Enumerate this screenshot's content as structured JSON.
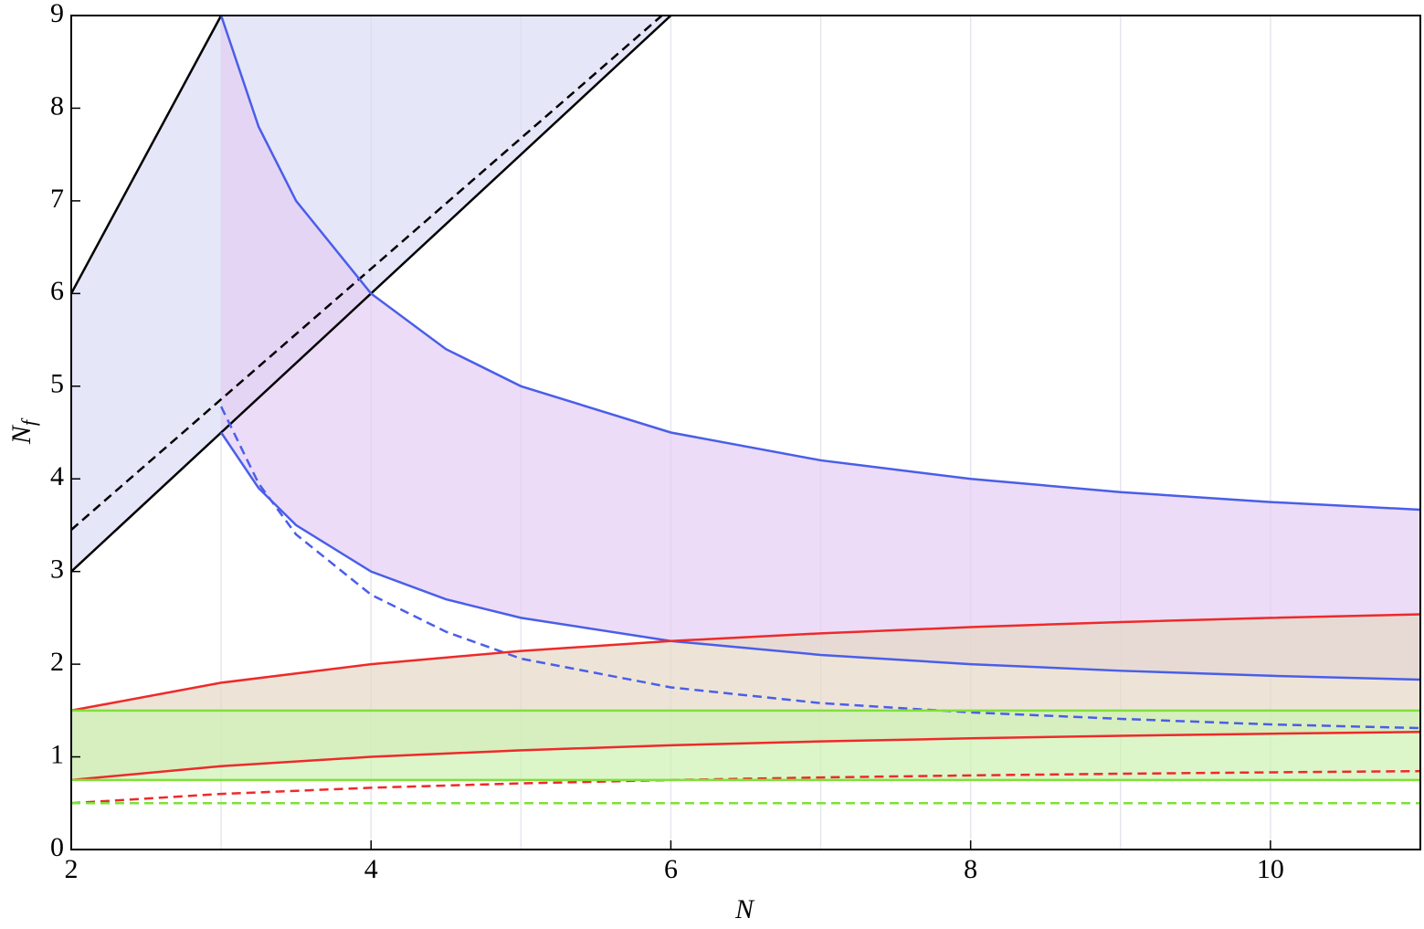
{
  "chart_data": {
    "type": "line",
    "xlabel": "N",
    "ylabel": "N",
    "ylabel_subscript": "f",
    "xlim": [
      2,
      11
    ],
    "ylim": [
      0,
      9
    ],
    "xticks": [
      2,
      4,
      6,
      8,
      10
    ],
    "yticks": [
      0,
      1,
      2,
      3,
      4,
      5,
      6,
      7,
      8,
      9
    ],
    "x_gridlines": [
      3,
      4,
      5,
      6,
      7,
      8,
      9,
      10
    ],
    "bands": [
      {
        "color": "#dcdcf6",
        "x": [
          2,
          3,
          6
        ],
        "upper": [
          6,
          9,
          9
        ],
        "lower": [
          3,
          4.5,
          9
        ]
      },
      {
        "color": "#e4cdf3",
        "x": [
          3,
          3.25,
          3.5,
          4,
          4.5,
          5,
          6,
          7,
          8,
          9,
          10,
          11
        ],
        "upper": [
          9,
          7.8,
          7,
          6,
          5.4,
          5,
          4.5,
          4.2,
          4,
          3.857,
          3.75,
          3.667
        ],
        "lower": [
          4.5,
          3.9,
          3.5,
          3,
          2.7,
          2.5,
          2.25,
          2.1,
          2,
          1.929,
          1.875,
          1.833
        ]
      },
      {
        "color": "#e6d9c6",
        "x": [
          2,
          3,
          4,
          5,
          6,
          7,
          8,
          9,
          10,
          11
        ],
        "upper": [
          1.5,
          1.8,
          2,
          2.143,
          2.25,
          2.333,
          2.4,
          2.455,
          2.5,
          2.538
        ],
        "lower": [
          0.75,
          0.9,
          1,
          1.071,
          1.125,
          1.167,
          1.2,
          1.227,
          1.25,
          1.269
        ]
      },
      {
        "color": "#cdf2b4",
        "x": [
          2,
          11
        ],
        "upper": [
          1.5,
          1.5
        ],
        "lower": [
          0.75,
          0.75
        ]
      }
    ],
    "series": [
      {
        "color": "#000000",
        "dashed": false,
        "x": [
          2,
          3
        ],
        "values": [
          6,
          9
        ]
      },
      {
        "color": "#000000",
        "dashed": false,
        "x": [
          2,
          6
        ],
        "values": [
          3,
          9
        ]
      },
      {
        "color": "#000000",
        "dashed": true,
        "x": [
          2,
          5.94
        ],
        "values": [
          3.45,
          9
        ]
      },
      {
        "color": "#4a5ee8",
        "dashed": false,
        "x": [
          3,
          3.25,
          3.5,
          4,
          4.5,
          5,
          6,
          7,
          8,
          9,
          10,
          11
        ],
        "values": [
          9,
          7.8,
          7,
          6,
          5.4,
          5,
          4.5,
          4.2,
          4,
          3.857,
          3.75,
          3.667
        ]
      },
      {
        "color": "#4a5ee8",
        "dashed": false,
        "x": [
          3,
          3.25,
          3.5,
          4,
          4.5,
          5,
          6,
          7,
          8,
          9,
          10,
          11
        ],
        "values": [
          4.5,
          3.9,
          3.5,
          3,
          2.7,
          2.5,
          2.25,
          2.1,
          2,
          1.929,
          1.875,
          1.833
        ]
      },
      {
        "color": "#4a5ee8",
        "dashed": true,
        "x": [
          3,
          3.25,
          3.5,
          4,
          4.5,
          5,
          6,
          7,
          8,
          9,
          10,
          11
        ],
        "values": [
          4.78,
          3.95,
          3.4,
          2.75,
          2.35,
          2.06,
          1.75,
          1.58,
          1.48,
          1.41,
          1.35,
          1.31
        ]
      },
      {
        "color": "#ee2a2a",
        "dashed": false,
        "x": [
          2,
          3,
          4,
          5,
          6,
          7,
          8,
          9,
          10,
          11
        ],
        "values": [
          1.5,
          1.8,
          2,
          2.143,
          2.25,
          2.333,
          2.4,
          2.455,
          2.5,
          2.538
        ]
      },
      {
        "color": "#ee2a2a",
        "dashed": false,
        "x": [
          2,
          3,
          4,
          5,
          6,
          7,
          8,
          9,
          10,
          11
        ],
        "values": [
          0.75,
          0.9,
          1,
          1.071,
          1.125,
          1.167,
          1.2,
          1.227,
          1.25,
          1.269
        ]
      },
      {
        "color": "#ee2a2a",
        "dashed": true,
        "x": [
          2,
          3,
          4,
          5,
          6,
          7,
          8,
          9,
          10,
          11
        ],
        "values": [
          0.5,
          0.6,
          0.667,
          0.714,
          0.75,
          0.778,
          0.8,
          0.818,
          0.833,
          0.846
        ]
      },
      {
        "color": "#7fe03a",
        "dashed": false,
        "x": [
          2,
          11
        ],
        "values": [
          1.5,
          1.5
        ]
      },
      {
        "color": "#7fe03a",
        "dashed": false,
        "x": [
          2,
          11
        ],
        "values": [
          0.75,
          0.75
        ]
      },
      {
        "color": "#7fe03a",
        "dashed": true,
        "x": [
          2,
          11
        ],
        "values": [
          0.5,
          0.5
        ]
      }
    ]
  }
}
